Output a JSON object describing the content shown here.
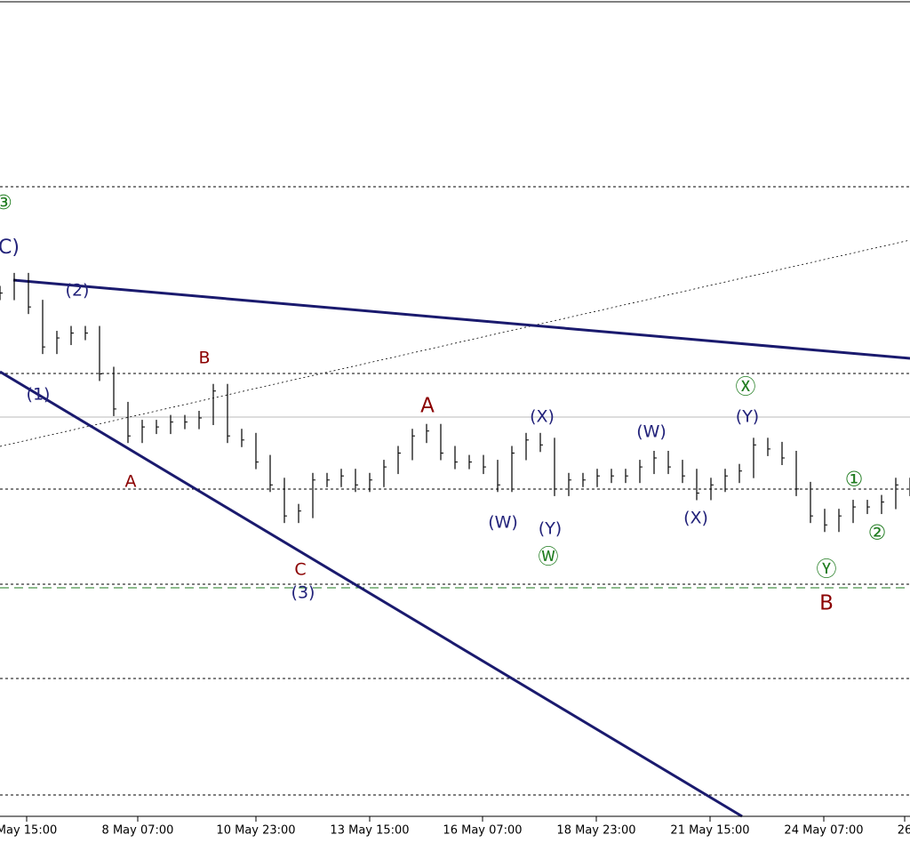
{
  "chart_data": {
    "type": "price-bars",
    "color": "#000000",
    "ylim": [
      0,
      100
    ],
    "values": [
      64.1,
      65.7,
      62.4,
      57.5,
      58.6,
      59.2,
      59.2,
      54.2,
      49.9,
      46.6,
      47.7,
      47.7,
      48.3,
      48.3,
      48.8,
      52.1,
      46.6,
      46.1,
      43.4,
      40.6,
      36.8,
      37.4,
      41.2,
      41.2,
      41.7,
      40.6,
      41.2,
      42.8,
      44.5,
      46.6,
      47.2,
      44.5,
      43.4,
      43.4,
      42.8,
      40.6,
      44.5,
      46.1,
      45.5,
      40.1,
      41.2,
      41.2,
      41.7,
      41.7,
      41.7,
      42.8,
      43.9,
      42.8,
      41.7,
      39.6,
      40.6,
      41.7,
      42.3,
      45.5,
      45.0,
      43.9,
      40.1,
      36.8,
      35.7,
      36.8,
      37.9,
      37.9,
      38.5,
      40.6,
      40.1
    ],
    "x_labels": [
      "May 15:00",
      "8 May 07:00",
      "10 May 23:00",
      "13 May 15:00",
      "16 May 07:00",
      "18 May 23:00",
      "21 May 15:00",
      "24 May 07:00",
      "26"
    ],
    "annotations": [
      {
        "text": "③",
        "color": "#1e7b1e"
      },
      {
        "text": "C)",
        "color": "#22227a"
      },
      {
        "text": "(2)",
        "color": "#22227a"
      },
      {
        "text": "(1)",
        "color": "#22227a"
      },
      {
        "text": "A",
        "color": "#8b0000"
      },
      {
        "text": "B",
        "color": "#8b0000"
      },
      {
        "text": "C",
        "color": "#8b0000"
      },
      {
        "text": "(3)",
        "color": "#22227a"
      },
      {
        "text": "A",
        "color": "#8b0000"
      },
      {
        "text": "(X)",
        "color": "#22227a"
      },
      {
        "text": "(W)",
        "color": "#22227a"
      },
      {
        "text": "(Y)",
        "color": "#22227a"
      },
      {
        "text": "Ⓦ",
        "color": "#1e7b1e"
      },
      {
        "text": "(W)",
        "color": "#22227a"
      },
      {
        "text": "(X)",
        "color": "#22227a"
      },
      {
        "text": "Ⓧ",
        "color": "#1e7b1e"
      },
      {
        "text": "(Y)",
        "color": "#22227a"
      },
      {
        "text": "①",
        "color": "#1e7b1e"
      },
      {
        "text": "②",
        "color": "#1e7b1e"
      },
      {
        "text": "Ⓨ",
        "color": "#1e7b1e"
      },
      {
        "text": "B",
        "color": "#8b0000"
      }
    ]
  }
}
